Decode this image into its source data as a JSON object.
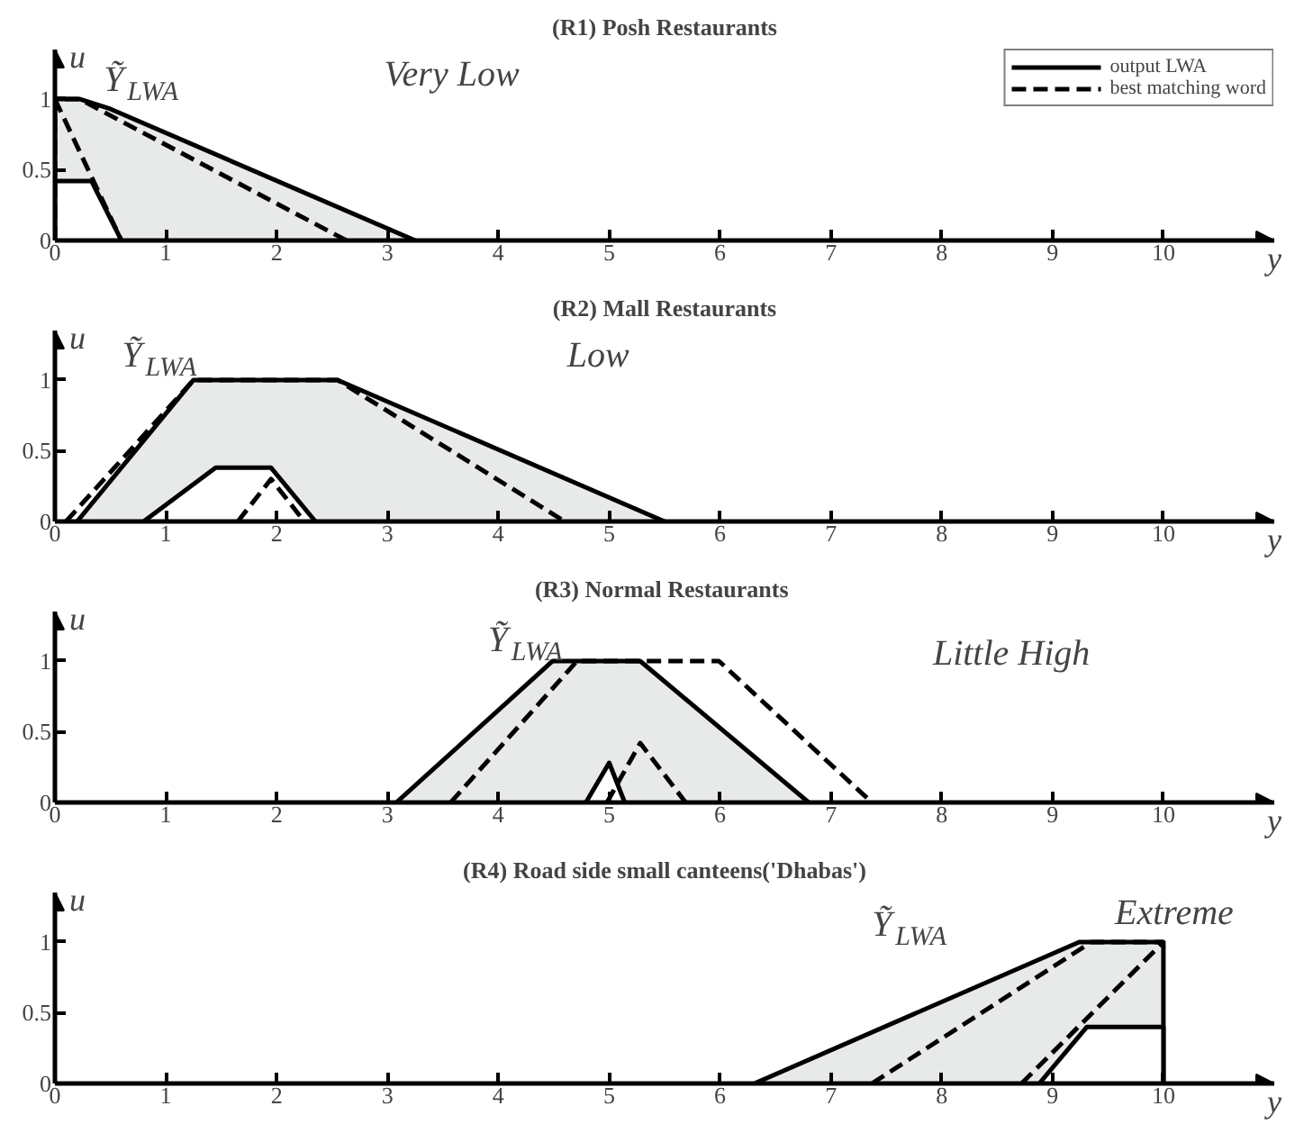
{
  "chart_data": [
    {
      "type": "line",
      "title": "(R1) Posh Restaurants",
      "xlabel": "y",
      "ylabel": "u",
      "xlim": [
        0,
        11
      ],
      "ylim": [
        0,
        1.35
      ],
      "xticks": [
        0,
        1,
        2,
        3,
        4,
        5,
        6,
        7,
        8,
        9,
        10
      ],
      "yticks": [
        0,
        0.5,
        1
      ],
      "legend": "top right",
      "line_style": "solid",
      "annotations": [
        "Ỹ$_{LWA}$",
        "Very Low"
      ],
      "series": [
        {
          "type": "area",
          "name": "output LWA",
          "color": "#e8eaea",
          "x": [
            0,
            0,
            0.22,
            0.5,
            3.25
          ],
          "values": [
            0,
            1,
            1,
            0.93,
            0
          ]
        },
        {
          "type": "area",
          "color": "#ffffff",
          "x": [
            0,
            0,
            0.33,
            0.6
          ],
          "values": [
            0,
            0.42,
            0.42,
            0
          ]
        },
        {
          "name": "best matching word",
          "color": "#000000",
          "line_style": "dashed",
          "x": [
            0,
            0,
            0.22,
            2.63
          ],
          "values": [
            0,
            1,
            1,
            0
          ]
        },
        {
          "color": "#000000",
          "line_style": "dashed",
          "x": [
            0,
            0.6
          ],
          "values": [
            1,
            0
          ]
        }
      ]
    },
    {
      "type": "line",
      "title": "(R2) Mall Restaurants",
      "xlabel": "y",
      "ylabel": "u",
      "xlim": [
        0,
        11
      ],
      "ylim": [
        0,
        1.35
      ],
      "xticks": [
        0,
        1,
        2,
        3,
        4,
        5,
        6,
        7,
        8,
        9,
        10
      ],
      "yticks": [
        0,
        0.5,
        1
      ],
      "line_style": "solid",
      "annotations": [
        "Ỹ$_{LWA}$",
        "Low"
      ],
      "series": [
        {
          "type": "area",
          "color": "#e8eaea",
          "x": [
            0.2,
            1.25,
            2.55,
            5.5
          ],
          "values": [
            0,
            1,
            1,
            0
          ]
        },
        {
          "type": "area",
          "color": "#ffffff",
          "x": [
            0.8,
            1.45,
            1.95,
            2.35
          ],
          "values": [
            0,
            0.38,
            0.38,
            0
          ]
        },
        {
          "color": "#000000",
          "line_style": "dashed",
          "x": [
            0.1,
            1.25,
            2.55,
            4.6
          ],
          "values": [
            0,
            1,
            1,
            0
          ]
        },
        {
          "color": "#000000",
          "line_style": "dashed",
          "x": [
            1.65,
            1.95,
            2.25
          ],
          "values": [
            0,
            0.3,
            0
          ]
        }
      ]
    },
    {
      "type": "line",
      "title": "(R3) Normal  Restaurants",
      "xlabel": "y",
      "ylabel": "u",
      "xlim": [
        0,
        11
      ],
      "ylim": [
        0,
        1.35
      ],
      "xticks": [
        0,
        1,
        2,
        3,
        4,
        5,
        6,
        7,
        8,
        9,
        10
      ],
      "yticks": [
        0,
        0.5,
        1
      ],
      "line_style": "solid",
      "annotations": [
        "Ỹ$_{LWA}$",
        "Little High"
      ],
      "series": [
        {
          "type": "area",
          "color": "#e8eaea",
          "x": [
            3.08,
            4.49,
            5.28,
            6.8
          ],
          "values": [
            0,
            1,
            1,
            0
          ]
        },
        {
          "type": "area",
          "color": "#ffffff",
          "x": [
            4.79,
            5.0,
            5.14
          ],
          "values": [
            0,
            0.28,
            0
          ]
        },
        {
          "color": "#000000",
          "line_style": "dashed",
          "x": [
            3.57,
            4.71,
            5.99,
            7.37
          ],
          "values": [
            0,
            1,
            1,
            0
          ]
        },
        {
          "color": "#000000",
          "line_style": "dashed",
          "x": [
            4.98,
            5.28,
            5.69
          ],
          "values": [
            0,
            0.42,
            0
          ]
        }
      ]
    },
    {
      "type": "line",
      "title": "(R4) Road side small canteens('Dhabas')",
      "xlabel": "y",
      "ylabel": "u",
      "xlim": [
        0,
        11
      ],
      "ylim": [
        0,
        1.35
      ],
      "xticks": [
        0,
        1,
        2,
        3,
        4,
        5,
        6,
        7,
        8,
        9,
        10
      ],
      "yticks": [
        0,
        0.5,
        1
      ],
      "line_style": "solid",
      "annotations": [
        "Ỹ$_{LWA}$",
        {
          "text": "Extreme",
          "x": 10,
          "y": 1
        }
      ],
      "series": [
        {
          "type": "area",
          "color": "#e8eaea",
          "x": [
            6.31,
            9.24,
            10,
            10
          ],
          "values": [
            0,
            1,
            1,
            0
          ]
        },
        {
          "type": "area",
          "color": "#ffffff",
          "x": [
            8.88,
            9.31,
            10,
            10
          ],
          "values": [
            0,
            0.4,
            0.4,
            0
          ]
        },
        {
          "color": "#000000",
          "line_style": "dashed",
          "x": [
            7.37,
            9.35,
            10
          ],
          "values": [
            0,
            1,
            1
          ]
        },
        {
          "color": "#000000",
          "line_style": "dashed",
          "x": [
            8.72,
            10
          ],
          "values": [
            0,
            1
          ]
        }
      ]
    }
  ]
}
